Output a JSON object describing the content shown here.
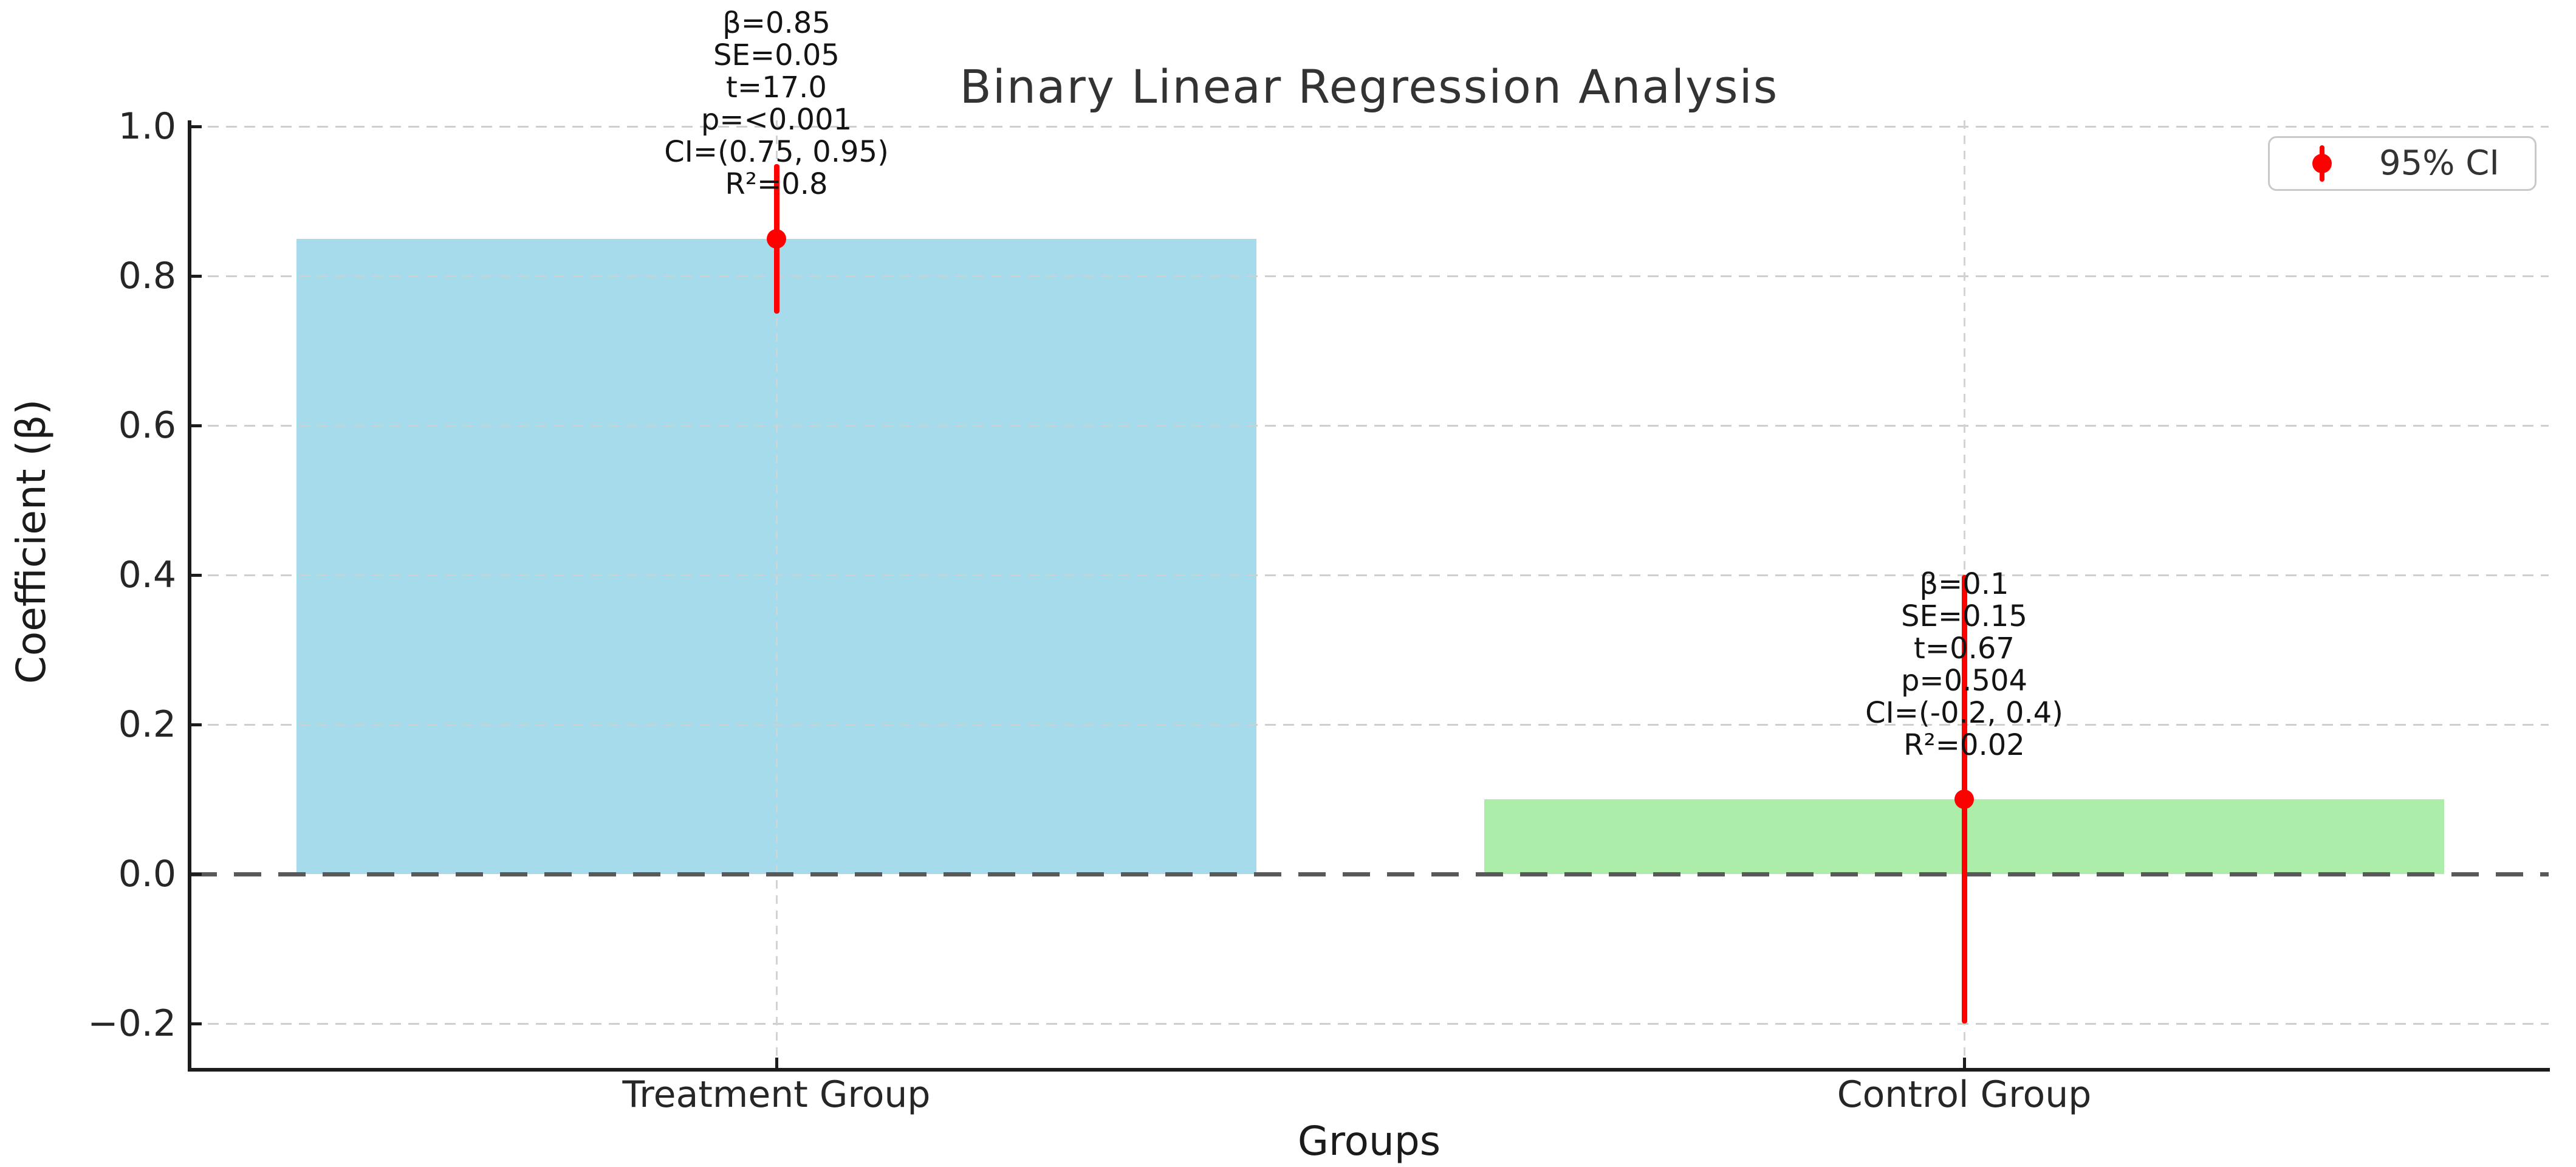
{
  "chart_data": {
    "type": "bar",
    "title": "Binary Linear Regression Analysis",
    "xlabel": "Groups",
    "ylabel": "Coefficient (β)",
    "categories": [
      "Treatment Group",
      "Control Group"
    ],
    "values": [
      0.85,
      0.1
    ],
    "bar_colors": [
      "#a5dbeb",
      "#aceda9"
    ],
    "bar_color_names": [
      "skyblue",
      "lightgreen"
    ],
    "error_bars": {
      "color": "#ff0000",
      "ci_low": [
        0.75,
        -0.2
      ],
      "ci_high": [
        0.95,
        0.4
      ]
    },
    "yticks": [
      1.0,
      0.8,
      0.6,
      0.4,
      0.2,
      0.0,
      -0.2
    ],
    "ytick_labels": [
      "1.0",
      "0.8",
      "0.6",
      "0.4",
      "0.2",
      "0.0",
      "−0.2"
    ],
    "ylim": [
      -0.27,
      1.01
    ],
    "grid": true,
    "grid_style": "dashed",
    "zero_line": {
      "value": 0.0,
      "style": "dashed",
      "color": "#595959"
    },
    "legend": {
      "label": "95% CI",
      "position": "upper right",
      "marker": "red-errorbar-dot",
      "marker_color": "#ff0000"
    },
    "annotations": [
      {
        "group": "Treatment Group",
        "lines": [
          "β=0.85",
          "SE=0.05",
          "t=17.0",
          "p=<0.001",
          "CI=(0.75, 0.95)",
          "R²=0.8"
        ]
      },
      {
        "group": "Control Group",
        "lines": [
          "β=0.1",
          "SE=0.15",
          "t=0.67",
          "p=0.504",
          "CI=(-0.2, 0.4)",
          "R²=0.02"
        ]
      }
    ],
    "stats": [
      {
        "group": "Treatment Group",
        "beta": 0.85,
        "se": 0.05,
        "t": 17.0,
        "p": "<0.001",
        "ci": [
          0.75,
          0.95
        ],
        "r2": 0.8
      },
      {
        "group": "Control Group",
        "beta": 0.1,
        "se": 0.15,
        "t": 0.67,
        "p": "0.504",
        "ci": [
          -0.2,
          0.4
        ],
        "r2": 0.02
      }
    ]
  }
}
